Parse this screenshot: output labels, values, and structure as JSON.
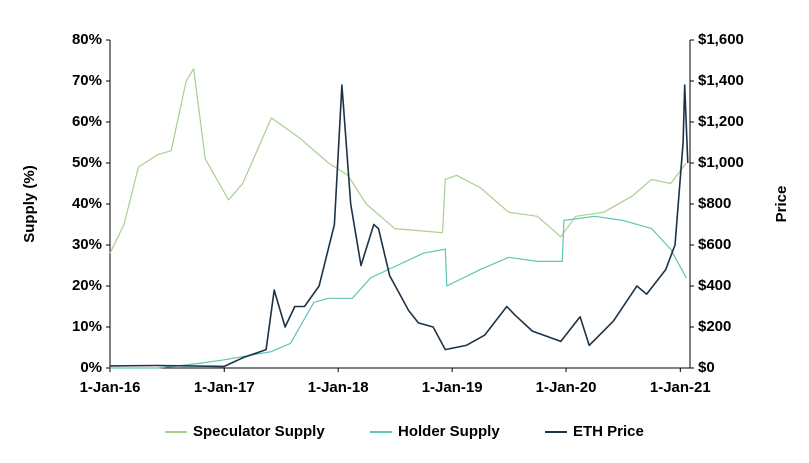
{
  "chart_data": {
    "type": "line",
    "xlim": [
      "2016-01-01",
      "2021-02-01"
    ],
    "xticks": [
      {
        "value": "2016-01-01",
        "label": "1-Jan-16"
      },
      {
        "value": "2017-01-01",
        "label": "1-Jan-17"
      },
      {
        "value": "2018-01-01",
        "label": "1-Jan-18"
      },
      {
        "value": "2019-01-01",
        "label": "1-Jan-19"
      },
      {
        "value": "2020-01-01",
        "label": "1-Jan-20"
      },
      {
        "value": "2021-01-01",
        "label": "1-Jan-21"
      }
    ],
    "ylabel": "Supply (%)",
    "ylim": [
      0,
      80
    ],
    "yticks": [
      {
        "value": 0,
        "label": "0%"
      },
      {
        "value": 10,
        "label": "10%"
      },
      {
        "value": 20,
        "label": "20%"
      },
      {
        "value": 30,
        "label": "30%"
      },
      {
        "value": 40,
        "label": "40%"
      },
      {
        "value": 50,
        "label": "50%"
      },
      {
        "value": 60,
        "label": "60%"
      },
      {
        "value": 70,
        "label": "70%"
      },
      {
        "value": 80,
        "label": "80%"
      }
    ],
    "y2label": "Price",
    "y2lim": [
      0,
      1600
    ],
    "y2ticks": [
      {
        "value": 0,
        "label": "$0"
      },
      {
        "value": 200,
        "label": "$200"
      },
      {
        "value": 400,
        "label": "$400"
      },
      {
        "value": 600,
        "label": "$600"
      },
      {
        "value": 800,
        "label": "$800"
      },
      {
        "value": 1000,
        "label": "$1,000"
      },
      {
        "value": 1200,
        "label": "$1,200"
      },
      {
        "value": 1400,
        "label": "$1,400"
      },
      {
        "value": 1600,
        "label": "$1,600"
      }
    ],
    "legend": "bottom",
    "series": [
      {
        "name": "Speculator Supply",
        "color": "#a9cf8f",
        "x": [
          "2016-01-01",
          "2016-02-15",
          "2016-04-01",
          "2016-06-01",
          "2016-07-15",
          "2016-09-01",
          "2016-09-25",
          "2016-11-01",
          "2017-01-15",
          "2017-03-01",
          "2017-06-01",
          "2017-09-01",
          "2017-12-01",
          "2018-02-01",
          "2018-04-01",
          "2018-07-01",
          "2018-12-01",
          "2018-12-10",
          "2019-01-15",
          "2019-04-01",
          "2019-07-01",
          "2019-10-01",
          "2019-12-15",
          "2020-02-01",
          "2020-05-01",
          "2020-08-01",
          "2020-10-01",
          "2020-12-01",
          "2021-01-20"
        ],
        "values": [
          28,
          35,
          49,
          52,
          53,
          70,
          73,
          51,
          41,
          45,
          61,
          56,
          50,
          47,
          40,
          34,
          33,
          46,
          47,
          44,
          38,
          37,
          32,
          37,
          38,
          42,
          46,
          45,
          50
        ]
      },
      {
        "name": "Holder Supply",
        "color": "#5fc5b6",
        "x": [
          "2016-01-01",
          "2016-06-01",
          "2016-10-01",
          "2017-01-01",
          "2017-06-01",
          "2017-08-01",
          "2017-09-15",
          "2017-10-15",
          "2017-12-01",
          "2018-02-15",
          "2018-04-15",
          "2018-10-01",
          "2018-12-10",
          "2018-12-15",
          "2019-04-01",
          "2019-07-01",
          "2019-10-01",
          "2019-12-20",
          "2019-12-25",
          "2020-04-01",
          "2020-07-01",
          "2020-10-01",
          "2020-12-01",
          "2021-01-20"
        ],
        "values": [
          0,
          0,
          1,
          2,
          4,
          6,
          12,
          16,
          17,
          17,
          22,
          28,
          29,
          20,
          24,
          27,
          26,
          26,
          36,
          37,
          36,
          34,
          29,
          22
        ]
      },
      {
        "name": "ETH Price",
        "color": "#1c3347",
        "axis": "y2",
        "x": [
          "2016-01-01",
          "2016-06-01",
          "2017-01-01",
          "2017-03-01",
          "2017-05-15",
          "2017-06-10",
          "2017-07-15",
          "2017-08-15",
          "2017-09-15",
          "2017-11-01",
          "2017-12-20",
          "2018-01-13",
          "2018-02-10",
          "2018-03-15",
          "2018-04-25",
          "2018-05-10",
          "2018-06-15",
          "2018-08-15",
          "2018-09-15",
          "2018-11-01",
          "2018-12-10",
          "2019-02-15",
          "2019-04-15",
          "2019-06-25",
          "2019-07-20",
          "2019-09-15",
          "2019-12-15",
          "2020-02-15",
          "2020-03-15",
          "2020-06-01",
          "2020-08-15",
          "2020-09-15",
          "2020-11-15",
          "2020-12-15",
          "2021-01-10",
          "2021-01-15",
          "2021-01-25"
        ],
        "values": [
          10,
          12,
          8,
          50,
          90,
          380,
          200,
          300,
          300,
          400,
          700,
          1380,
          800,
          500,
          700,
          680,
          450,
          280,
          220,
          200,
          90,
          110,
          160,
          300,
          260,
          180,
          130,
          250,
          110,
          230,
          400,
          360,
          480,
          600,
          1100,
          1380,
          1000
        ]
      }
    ]
  }
}
